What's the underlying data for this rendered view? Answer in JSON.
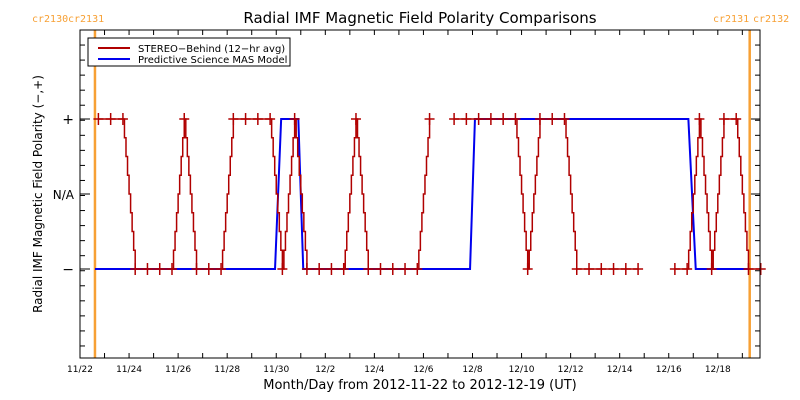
{
  "chart_data": {
    "type": "line",
    "title": "Radial IMF Magnetic Field Polarity Comparisons",
    "xlabel": "Month/Day from 2012-11-22 to 2012-12-19 (UT)",
    "ylabel": "Radial IMF Magnetic Field Polarity (−,+)",
    "x_units": "days since 2012-11-22 00:00 UT",
    "xlim": [
      0,
      27.72
    ],
    "ylim": [
      -1.5,
      1.5
    ],
    "x_ticks": [
      {
        "day": 0,
        "label": "11/22"
      },
      {
        "day": 2,
        "label": "11/24"
      },
      {
        "day": 4,
        "label": "11/26"
      },
      {
        "day": 6,
        "label": "11/28"
      },
      {
        "day": 8,
        "label": "11/30"
      },
      {
        "day": 10,
        "label": "12/2"
      },
      {
        "day": 12,
        "label": "12/4"
      },
      {
        "day": 14,
        "label": "12/6"
      },
      {
        "day": 16,
        "label": "12/8"
      },
      {
        "day": 18,
        "label": "12/10"
      },
      {
        "day": 20,
        "label": "12/12"
      },
      {
        "day": 22,
        "label": "12/14"
      },
      {
        "day": 24,
        "label": "12/16"
      },
      {
        "day": 26,
        "label": "12/18"
      }
    ],
    "y_ticks": [
      {
        "value": 1,
        "label": "+"
      },
      {
        "value": 0,
        "label": "N/A"
      },
      {
        "value": -1,
        "label": "−"
      }
    ],
    "legend": {
      "placement": "top-left",
      "entries": [
        {
          "name": "STEREO−Behind (12−hr avg)",
          "color": "#b00000"
        },
        {
          "name": "Predictive Science MAS Model",
          "color": "#0000ee"
        }
      ]
    },
    "carrington_markers": [
      {
        "day": 0.61,
        "left_label": "cr2130",
        "right_label": "cr2131",
        "color": "#f7a034"
      },
      {
        "day": 27.3,
        "left_label": "cr2131",
        "right_label": "cr2132",
        "color": "#f7a034"
      }
    ],
    "series": [
      {
        "name": "STEREO−Behind (12−hr avg)",
        "color": "#b00000",
        "x": [
          0.75,
          1.25,
          1.75,
          2.25,
          2.75,
          3.25,
          3.75,
          4.25,
          4.75,
          5.25,
          5.75,
          6.25,
          6.75,
          7.25,
          7.75,
          8.25,
          8.75,
          9.25,
          9.75,
          10.25,
          10.75,
          11.25,
          11.75,
          12.25,
          12.75,
          13.25,
          13.75,
          14.25,
          15.25,
          15.75,
          16.25,
          16.75,
          17.25,
          17.75,
          18.25,
          18.75,
          19.25,
          19.75,
          20.25,
          20.75,
          21.25,
          21.75,
          22.25,
          22.75,
          24.25,
          24.75,
          25.25,
          25.75,
          26.25,
          26.75,
          27.25,
          27.75
        ],
        "values": [
          1,
          1,
          1,
          -1,
          -1,
          -1,
          -1,
          1,
          -1,
          -1,
          -1,
          1,
          1,
          1,
          1,
          -1,
          1,
          -1,
          -1,
          -1,
          -1,
          1,
          -1,
          -1,
          -1,
          -1,
          -1,
          1,
          1,
          1,
          1,
          1,
          1,
          1,
          -1,
          1,
          1,
          1,
          -1,
          -1,
          -1,
          -1,
          -1,
          -1,
          -1,
          -1,
          1,
          -1,
          1,
          1,
          -1,
          -1
        ]
      },
      {
        "name": "Predictive Science MAS Model",
        "color": "#0000ee",
        "x": [
          0.61,
          7.95,
          8.2,
          8.9,
          9.1,
          15.9,
          16.1,
          24.8,
          25.1,
          27.3
        ],
        "values": [
          -1,
          -1,
          1,
          1,
          -1,
          -1,
          1,
          1,
          -1,
          -1
        ]
      }
    ]
  }
}
